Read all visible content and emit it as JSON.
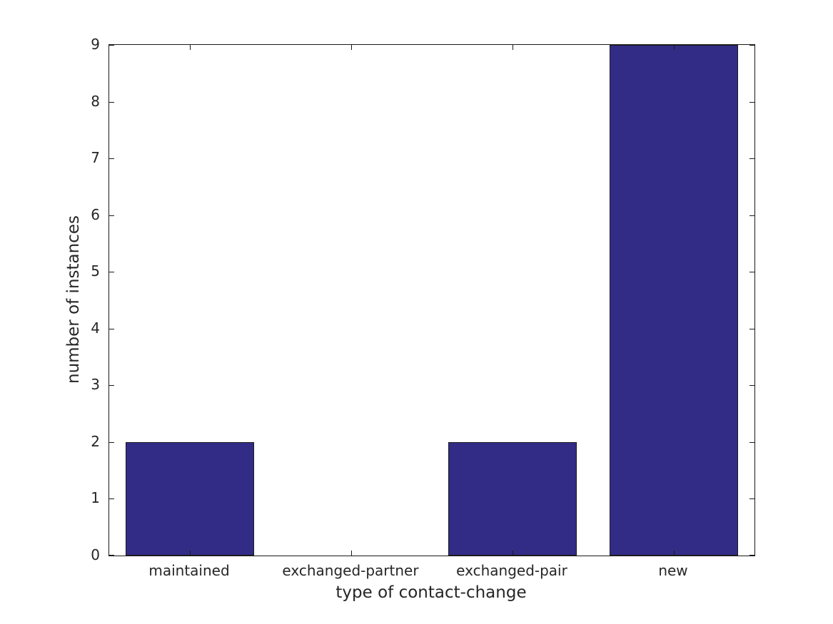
{
  "figure": {
    "background": "#ffffff"
  },
  "chart_data": {
    "type": "bar",
    "categories": [
      "maintained",
      "exchanged-partner",
      "exchanged-pair",
      "new"
    ],
    "values": [
      2,
      0,
      2,
      9
    ],
    "title": "",
    "xlabel": "type of contact-change",
    "ylabel": "number of instances",
    "ylim": [
      0,
      9
    ],
    "yticks": [
      0,
      1,
      2,
      3,
      4,
      5,
      6,
      7,
      8,
      9
    ],
    "bar_color": "#332c87",
    "bar_edge_color": "#1a1a1a",
    "axis_color": "#1a1a1a",
    "text_color": "#262626",
    "bar_width_fraction": 0.8,
    "grid": false,
    "legend": null,
    "tick_direction": "in"
  }
}
